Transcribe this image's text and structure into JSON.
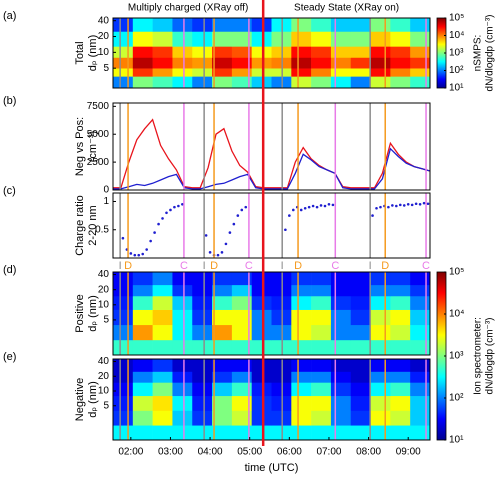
{
  "header": {
    "left_title": "Multiply charged (XRay off)",
    "right_title": "Steady State (XRay on)",
    "divider": 5.34,
    "divider_color": "#e8141c"
  },
  "events": {
    "labels": [
      "I",
      "D",
      "C"
    ],
    "colors": [
      "#8c8c8c",
      "#f59a1e",
      "#e87be8"
    ],
    "times": [
      [
        1.73,
        1.93,
        3.34
      ],
      [
        3.85,
        4.1,
        4.98
      ],
      [
        5.82,
        6.22,
        7.16
      ],
      [
        8.04,
        8.42,
        9.45
      ]
    ]
  },
  "x_axis": {
    "label": "time (UTC)",
    "xlim": [
      1.55,
      9.55
    ],
    "xticks": [
      {
        "value": 2,
        "label": "02:00"
      },
      {
        "value": 3,
        "label": "03:00"
      },
      {
        "value": 4,
        "label": "04:00"
      },
      {
        "value": 5,
        "label": "05:00"
      },
      {
        "value": 6,
        "label": "06:00"
      },
      {
        "value": 7,
        "label": "07:00"
      },
      {
        "value": 8,
        "label": "08:00"
      },
      {
        "value": 9,
        "label": "09:00"
      }
    ]
  },
  "chart_data": [
    {
      "type": "heatmap",
      "panel": "(a)",
      "ylabel": [
        "Total",
        "dₚ (nm)"
      ],
      "y_log": true,
      "ylim": [
        2.1,
        45
      ],
      "yticks": [
        5,
        10,
        20,
        40
      ],
      "x_edges": [
        1.55,
        2.05,
        2.55,
        3.05,
        3.55,
        4.05,
        4.55,
        5.05,
        5.55,
        6.05,
        6.55,
        7.05,
        7.55,
        8.05,
        8.55,
        9.05,
        9.55
      ],
      "y_edges": [
        2.1,
        3.5,
        5,
        8,
        13,
        25,
        45
      ],
      "z": [
        [
          100,
          1000,
          600,
          300,
          100,
          1000,
          600,
          200,
          100,
          2000,
          1000,
          300,
          100,
          2000,
          1000,
          500
        ],
        [
          3000,
          20000,
          8000,
          3000,
          2000,
          20000,
          8000,
          2000,
          2000,
          30000,
          10000,
          3000,
          3000,
          30000,
          10000,
          5000
        ],
        [
          10000,
          60000,
          30000,
          10000,
          8000,
          50000,
          30000,
          8000,
          10000,
          60000,
          30000,
          10000,
          20000,
          60000,
          30000,
          20000
        ],
        [
          2000,
          30000,
          20000,
          5000,
          3000,
          20000,
          15000,
          3000,
          5000,
          30000,
          20000,
          5000,
          5000,
          30000,
          20000,
          8000
        ],
        [
          300,
          3000,
          2000,
          500,
          300,
          1000,
          1000,
          300,
          1000,
          5000,
          3000,
          1000,
          1000,
          5000,
          3000,
          1000
        ],
        [
          50,
          300,
          200,
          80,
          50,
          100,
          100,
          50,
          300,
          1000,
          500,
          200,
          200,
          1000,
          500,
          200
        ]
      ],
      "colorbar": {
        "label": [
          "nSMPS:",
          "dN/dlogdp (cm⁻³)"
        ],
        "zlim": [
          10,
          100000
        ],
        "zticks": [
          {
            "value": 10,
            "label": "10¹"
          },
          {
            "value": 100,
            "label": "10²"
          },
          {
            "value": 1000,
            "label": "10³"
          },
          {
            "value": 10000,
            "label": "10⁴"
          },
          {
            "value": 100000,
            "label": "10⁵"
          }
        ],
        "colormap": "jet"
      }
    },
    {
      "type": "line",
      "panel": "(b)",
      "ylabel": [
        "Neg vs Pos:",
        "(cm⁻³)"
      ],
      "ylim": [
        0,
        7800
      ],
      "yticks": [
        0,
        2500,
        5000,
        7500
      ],
      "x": [
        1.55,
        1.75,
        1.95,
        2.15,
        2.35,
        2.55,
        2.75,
        2.95,
        3.15,
        3.35,
        3.55,
        3.75,
        3.95,
        4.15,
        4.35,
        4.55,
        4.75,
        4.95,
        5.15,
        5.35,
        5.55,
        5.75,
        5.95,
        6.15,
        6.35,
        6.55,
        6.75,
        6.95,
        7.15,
        7.35,
        7.55,
        7.75,
        7.95,
        8.15,
        8.35,
        8.55,
        8.75,
        8.95,
        9.15,
        9.35,
        9.55
      ],
      "series": [
        {
          "color": "#e8141c",
          "values": [
            200,
            200,
            2500,
            4500,
            5500,
            6300,
            4000,
            2800,
            1800,
            300,
            200,
            200,
            2000,
            5000,
            5500,
            3500,
            2200,
            1600,
            300,
            200,
            200,
            200,
            200,
            2500,
            3800,
            2800,
            2200,
            1800,
            1500,
            300,
            200,
            200,
            200,
            200,
            1500,
            4200,
            3200,
            2500,
            2100,
            1900,
            1700
          ]
        },
        {
          "color": "#1f1fd0",
          "values": [
            100,
            100,
            300,
            500,
            400,
            600,
            900,
            1200,
            1400,
            200,
            100,
            100,
            300,
            500,
            600,
            900,
            1200,
            1400,
            200,
            100,
            100,
            100,
            100,
            1500,
            3200,
            2700,
            2100,
            1800,
            1500,
            200,
            100,
            100,
            100,
            100,
            1000,
            3700,
            3000,
            2400,
            2100,
            1900,
            1700
          ]
        }
      ]
    },
    {
      "type": "scatter",
      "panel": "(c)",
      "ylabel": [
        "Charge ratio",
        "2-20 nm"
      ],
      "ylim": [
        0,
        1.15
      ],
      "yticks": [
        0.5,
        1
      ],
      "color": "#1f1fd0",
      "x": [
        1.8,
        1.9,
        2.0,
        2.1,
        2.2,
        2.3,
        2.4,
        2.5,
        2.6,
        2.7,
        2.8,
        2.9,
        3.0,
        3.1,
        3.2,
        3.3,
        3.9,
        4.0,
        4.1,
        4.2,
        4.3,
        4.4,
        4.5,
        4.6,
        4.7,
        4.8,
        4.9,
        5.9,
        6.0,
        6.1,
        6.2,
        6.3,
        6.4,
        6.5,
        6.6,
        6.7,
        6.8,
        6.9,
        7.0,
        7.1,
        8.1,
        8.2,
        8.3,
        8.4,
        8.5,
        8.6,
        8.7,
        8.8,
        8.9,
        9.0,
        9.1,
        9.2,
        9.3,
        9.4,
        9.5
      ],
      "values": [
        0.35,
        0.15,
        0.08,
        0.05,
        0.05,
        0.07,
        0.15,
        0.3,
        0.45,
        0.6,
        0.7,
        0.8,
        0.85,
        0.9,
        0.92,
        0.95,
        0.4,
        0.1,
        0.05,
        0.05,
        0.1,
        0.25,
        0.45,
        0.6,
        0.75,
        0.85,
        0.9,
        0.5,
        0.75,
        0.85,
        0.9,
        0.85,
        0.88,
        0.9,
        0.92,
        0.9,
        0.93,
        0.92,
        0.95,
        0.94,
        0.75,
        0.88,
        0.9,
        0.92,
        0.9,
        0.93,
        0.92,
        0.94,
        0.93,
        0.95,
        0.94,
        0.96,
        0.95,
        0.97,
        0.96
      ]
    },
    {
      "type": "heatmap",
      "panel": "(d)",
      "ylabel": [
        "Positive",
        "dₚ (nm)"
      ],
      "y_log": true,
      "ylim": [
        1,
        45
      ],
      "yticks": [
        5,
        10,
        20,
        40
      ],
      "x_edges": [
        1.55,
        2.05,
        2.55,
        3.05,
        3.55,
        4.05,
        4.55,
        5.05,
        5.55,
        6.05,
        6.55,
        7.05,
        7.55,
        8.05,
        8.55,
        9.05,
        9.55
      ],
      "y_edges": [
        1,
        2,
        4,
        8,
        15,
        25,
        45
      ],
      "z": [
        [
          500,
          500,
          500,
          500,
          500,
          500,
          500,
          500,
          500,
          500,
          500,
          500,
          500,
          500,
          500,
          500
        ],
        [
          100,
          8000,
          3000,
          300,
          100,
          8000,
          3000,
          100,
          100,
          3000,
          2000,
          100,
          100,
          3000,
          2000,
          300
        ],
        [
          50,
          3000,
          5000,
          300,
          50,
          3000,
          3000,
          100,
          50,
          3000,
          3000,
          100,
          50,
          2000,
          3000,
          200
        ],
        [
          40,
          500,
          2000,
          200,
          40,
          500,
          1000,
          50,
          40,
          300,
          500,
          50,
          40,
          300,
          500,
          100
        ],
        [
          30,
          100,
          300,
          50,
          30,
          100,
          200,
          30,
          30,
          100,
          100,
          30,
          30,
          100,
          100,
          50
        ],
        [
          30,
          50,
          100,
          30,
          30,
          50,
          50,
          30,
          30,
          50,
          50,
          30,
          30,
          50,
          50,
          30
        ]
      ],
      "colorbar": {
        "label": [
          "Ion spectrometer:",
          "dN/dlogdp (cm⁻³)"
        ],
        "zlim": [
          10,
          100000
        ],
        "zticks": [
          {
            "value": 10,
            "label": "10¹"
          },
          {
            "value": 100,
            "label": "10²"
          },
          {
            "value": 1000,
            "label": "10³"
          },
          {
            "value": 10000,
            "label": "10⁴"
          },
          {
            "value": 100000,
            "label": "10⁵"
          }
        ],
        "colormap": "jet"
      }
    },
    {
      "type": "heatmap",
      "panel": "(e)",
      "ylabel": [
        "Negative",
        "dₚ (nm)"
      ],
      "y_log": true,
      "ylim": [
        1,
        45
      ],
      "yticks": [
        5,
        10,
        20,
        40
      ],
      "x_edges": [
        1.55,
        2.05,
        2.55,
        3.05,
        3.55,
        4.05,
        4.55,
        5.05,
        5.55,
        6.05,
        6.55,
        7.05,
        7.55,
        8.05,
        8.55,
        9.05,
        9.55
      ],
      "y_edges": [
        1,
        2,
        4,
        8,
        15,
        25,
        45
      ],
      "z": [
        [
          300,
          300,
          300,
          300,
          300,
          300,
          300,
          300,
          300,
          300,
          300,
          300,
          300,
          300,
          300,
          300
        ],
        [
          50,
          1000,
          3000,
          200,
          50,
          1000,
          2000,
          50,
          50,
          3000,
          2000,
          100,
          50,
          3000,
          2000,
          200
        ],
        [
          40,
          2000,
          4000,
          300,
          40,
          1000,
          3000,
          50,
          40,
          3000,
          3000,
          100,
          40,
          2000,
          3000,
          200
        ],
        [
          30,
          300,
          1000,
          100,
          30,
          200,
          500,
          40,
          30,
          300,
          500,
          50,
          30,
          300,
          500,
          100
        ],
        [
          20,
          100,
          200,
          40,
          20,
          50,
          100,
          20,
          20,
          100,
          100,
          30,
          20,
          100,
          100,
          40
        ],
        [
          20,
          30,
          50,
          20,
          20,
          30,
          30,
          20,
          20,
          30,
          30,
          20,
          20,
          30,
          30,
          20
        ]
      ]
    }
  ]
}
